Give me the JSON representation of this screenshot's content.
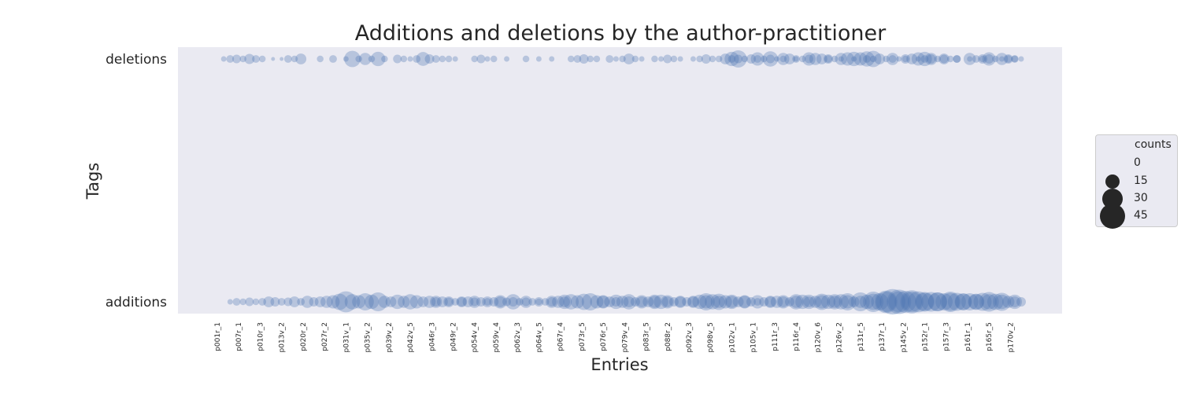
{
  "chart_data": {
    "type": "scatter",
    "title": "Additions and deletions by the author-practitioner",
    "xlabel": "Entries",
    "ylabel": "Tags",
    "y_categories": [
      "additions",
      "deletions"
    ],
    "x_tick_labels": [
      "p001r_1",
      "p007r_1",
      "p010r_3",
      "p013v_2",
      "p020r_2",
      "p027r_2",
      "p031v_1",
      "p035v_2",
      "p039v_2",
      "p042v_5",
      "p046r_3",
      "p049r_2",
      "p054v_4",
      "p059v_4",
      "p062v_3",
      "p064v_5",
      "p067r_4",
      "p073r_5",
      "p076r_5",
      "p079v_4",
      "p083r_5",
      "p088r_2",
      "p092v_3",
      "p098v_5",
      "p102v_1",
      "p105v_1",
      "p111r_3",
      "p116r_4",
      "p120v_6",
      "p126v_2",
      "p131r_5",
      "p137r_1",
      "p145v_2",
      "p152r_1",
      "p157r_3",
      "p161r_1",
      "p165r_5",
      "p170v_2"
    ],
    "x_tick_step": 10,
    "n_entries": 376,
    "size_legend": {
      "title": "counts",
      "levels": [
        0,
        15,
        30,
        45
      ],
      "labels": [
        "0",
        "15",
        "30",
        "45"
      ]
    },
    "grid": false,
    "legend_position": "right",
    "series": [
      {
        "tag": "deletions",
        "color": "#4c72b0",
        "points": [
          [
            3,
            2
          ],
          [
            6,
            4
          ],
          [
            9,
            5
          ],
          [
            12,
            3
          ],
          [
            15,
            7
          ],
          [
            18,
            4
          ],
          [
            21,
            3
          ],
          [
            26,
            1
          ],
          [
            30,
            1
          ],
          [
            33,
            4
          ],
          [
            36,
            3
          ],
          [
            39,
            8
          ],
          [
            48,
            3
          ],
          [
            54,
            4
          ],
          [
            60,
            2
          ],
          [
            63,
            18
          ],
          [
            66,
            3
          ],
          [
            69,
            10
          ],
          [
            72,
            3
          ],
          [
            75,
            14
          ],
          [
            78,
            3
          ],
          [
            84,
            5
          ],
          [
            87,
            3
          ],
          [
            90,
            2
          ],
          [
            93,
            4
          ],
          [
            96,
            13
          ],
          [
            99,
            6
          ],
          [
            102,
            4
          ],
          [
            105,
            3
          ],
          [
            108,
            3
          ],
          [
            111,
            2
          ],
          [
            120,
            3
          ],
          [
            123,
            5
          ],
          [
            126,
            2
          ],
          [
            129,
            3
          ],
          [
            135,
            2
          ],
          [
            144,
            3
          ],
          [
            150,
            2
          ],
          [
            156,
            2
          ],
          [
            165,
            3
          ],
          [
            168,
            4
          ],
          [
            171,
            6
          ],
          [
            174,
            3
          ],
          [
            177,
            3
          ],
          [
            183,
            4
          ],
          [
            186,
            2
          ],
          [
            189,
            3
          ],
          [
            192,
            8
          ],
          [
            195,
            3
          ],
          [
            198,
            2
          ],
          [
            204,
            3
          ],
          [
            207,
            2
          ],
          [
            210,
            5
          ],
          [
            213,
            3
          ],
          [
            216,
            2
          ],
          [
            222,
            2
          ],
          [
            225,
            3
          ],
          [
            228,
            6
          ],
          [
            231,
            3
          ],
          [
            234,
            3
          ],
          [
            237,
            8
          ],
          [
            240,
            4
          ],
          [
            243,
            5
          ],
          [
            246,
            3
          ],
          [
            249,
            6
          ],
          [
            252,
            4
          ],
          [
            255,
            3
          ],
          [
            258,
            5
          ],
          [
            261,
            2
          ],
          [
            264,
            3
          ],
          [
            270,
            2
          ],
          [
            273,
            3
          ],
          [
            276,
            5
          ],
          [
            279,
            10
          ],
          [
            285,
            4
          ],
          [
            288,
            3
          ],
          [
            291,
            2
          ],
          [
            297,
            2
          ],
          [
            303,
            4
          ],
          [
            306,
            3
          ],
          [
            312,
            3
          ],
          [
            315,
            4
          ],
          [
            318,
            2
          ],
          [
            321,
            3
          ],
          [
            327,
            2
          ],
          [
            330,
            4
          ],
          [
            333,
            6
          ],
          [
            336,
            3
          ],
          [
            339,
            5
          ],
          [
            342,
            3
          ],
          [
            345,
            4
          ],
          [
            351,
            2
          ],
          [
            354,
            4
          ],
          [
            357,
            3
          ],
          [
            360,
            6
          ],
          [
            363,
            3
          ],
          [
            366,
            2
          ],
          [
            369,
            4
          ],
          [
            372,
            3
          ],
          [
            375,
            2
          ],
          [
            243,
            20
          ],
          [
            240,
            14
          ],
          [
            252,
            12
          ],
          [
            258,
            16
          ],
          [
            264,
            10
          ],
          [
            267,
            8
          ],
          [
            270,
            4
          ],
          [
            276,
            12
          ],
          [
            282,
            8
          ],
          [
            285,
            6
          ],
          [
            291,
            10
          ],
          [
            294,
            12
          ],
          [
            297,
            14
          ],
          [
            300,
            12
          ],
          [
            303,
            16
          ],
          [
            306,
            18
          ],
          [
            309,
            8
          ],
          [
            315,
            10
          ],
          [
            321,
            6
          ],
          [
            324,
            8
          ],
          [
            327,
            12
          ],
          [
            330,
            14
          ],
          [
            333,
            10
          ],
          [
            339,
            8
          ],
          [
            345,
            4
          ],
          [
            351,
            10
          ],
          [
            357,
            6
          ],
          [
            360,
            12
          ],
          [
            366,
            10
          ],
          [
            369,
            6
          ],
          [
            372,
            4
          ]
        ]
      },
      {
        "tag": "additions",
        "color": "#4c72b0",
        "points": [
          [
            6,
            2
          ],
          [
            9,
            4
          ],
          [
            12,
            3
          ],
          [
            15,
            5
          ],
          [
            18,
            3
          ],
          [
            21,
            4
          ],
          [
            24,
            8
          ],
          [
            27,
            6
          ],
          [
            30,
            4
          ],
          [
            33,
            5
          ],
          [
            36,
            8
          ],
          [
            39,
            4
          ],
          [
            42,
            10
          ],
          [
            45,
            6
          ],
          [
            48,
            8
          ],
          [
            51,
            10
          ],
          [
            54,
            12
          ],
          [
            57,
            18
          ],
          [
            60,
            30
          ],
          [
            63,
            16
          ],
          [
            66,
            12
          ],
          [
            69,
            20
          ],
          [
            72,
            14
          ],
          [
            75,
            24
          ],
          [
            78,
            10
          ],
          [
            81,
            8
          ],
          [
            84,
            14
          ],
          [
            87,
            10
          ],
          [
            90,
            16
          ],
          [
            93,
            12
          ],
          [
            96,
            8
          ],
          [
            99,
            10
          ],
          [
            102,
            6
          ],
          [
            105,
            8
          ],
          [
            108,
            5
          ],
          [
            111,
            4
          ],
          [
            114,
            6
          ],
          [
            117,
            8
          ],
          [
            120,
            5
          ],
          [
            123,
            6
          ],
          [
            126,
            4
          ],
          [
            129,
            6
          ],
          [
            132,
            8
          ],
          [
            135,
            5
          ],
          [
            138,
            6
          ],
          [
            141,
            4
          ],
          [
            144,
            5
          ],
          [
            147,
            4
          ],
          [
            150,
            3
          ],
          [
            153,
            4
          ],
          [
            156,
            6
          ],
          [
            159,
            10
          ],
          [
            162,
            14
          ],
          [
            165,
            16
          ],
          [
            168,
            12
          ],
          [
            171,
            18
          ],
          [
            174,
            20
          ],
          [
            177,
            12
          ],
          [
            180,
            10
          ],
          [
            183,
            8
          ],
          [
            186,
            14
          ],
          [
            189,
            10
          ],
          [
            192,
            8
          ],
          [
            195,
            6
          ],
          [
            198,
            12
          ],
          [
            201,
            8
          ],
          [
            204,
            10
          ],
          [
            207,
            14
          ],
          [
            210,
            8
          ],
          [
            213,
            6
          ],
          [
            216,
            8
          ],
          [
            219,
            6
          ],
          [
            222,
            10
          ],
          [
            225,
            14
          ],
          [
            228,
            20
          ],
          [
            231,
            16
          ],
          [
            234,
            18
          ],
          [
            237,
            12
          ],
          [
            240,
            10
          ],
          [
            243,
            8
          ],
          [
            246,
            12
          ],
          [
            249,
            6
          ],
          [
            252,
            4
          ],
          [
            255,
            6
          ],
          [
            258,
            8
          ],
          [
            261,
            10
          ],
          [
            264,
            8
          ],
          [
            267,
            6
          ],
          [
            270,
            10
          ],
          [
            273,
            14
          ],
          [
            276,
            8
          ],
          [
            279,
            10
          ],
          [
            282,
            12
          ],
          [
            285,
            14
          ],
          [
            288,
            10
          ],
          [
            291,
            16
          ],
          [
            294,
            12
          ],
          [
            297,
            8
          ],
          [
            300,
            10
          ],
          [
            303,
            14
          ],
          [
            306,
            18
          ],
          [
            309,
            20
          ],
          [
            312,
            28
          ],
          [
            315,
            44
          ],
          [
            318,
            40
          ],
          [
            321,
            32
          ],
          [
            324,
            36
          ],
          [
            327,
            30
          ],
          [
            330,
            22
          ],
          [
            333,
            26
          ],
          [
            336,
            24
          ],
          [
            339,
            20
          ],
          [
            342,
            28
          ],
          [
            345,
            22
          ],
          [
            348,
            18
          ],
          [
            351,
            20
          ],
          [
            354,
            16
          ],
          [
            357,
            22
          ],
          [
            360,
            26
          ],
          [
            363,
            18
          ],
          [
            366,
            14
          ],
          [
            369,
            10
          ],
          [
            372,
            8
          ],
          [
            375,
            6
          ],
          [
            102,
            10
          ],
          [
            108,
            8
          ],
          [
            114,
            8
          ],
          [
            120,
            10
          ],
          [
            126,
            8
          ],
          [
            132,
            12
          ],
          [
            138,
            16
          ],
          [
            144,
            10
          ],
          [
            150,
            6
          ],
          [
            156,
            10
          ],
          [
            162,
            8
          ],
          [
            180,
            12
          ],
          [
            186,
            6
          ],
          [
            192,
            16
          ],
          [
            198,
            8
          ],
          [
            204,
            14
          ],
          [
            210,
            12
          ],
          [
            216,
            10
          ],
          [
            222,
            8
          ],
          [
            228,
            12
          ],
          [
            234,
            10
          ],
          [
            240,
            14
          ],
          [
            246,
            10
          ],
          [
            252,
            12
          ],
          [
            258,
            10
          ],
          [
            264,
            12
          ],
          [
            270,
            16
          ],
          [
            276,
            14
          ],
          [
            282,
            18
          ],
          [
            288,
            16
          ],
          [
            294,
            20
          ],
          [
            300,
            24
          ],
          [
            306,
            28
          ],
          [
            312,
            34
          ],
          [
            318,
            30
          ],
          [
            324,
            28
          ],
          [
            330,
            26
          ],
          [
            336,
            24
          ],
          [
            342,
            22
          ],
          [
            348,
            20
          ],
          [
            354,
            18
          ],
          [
            360,
            16
          ],
          [
            366,
            22
          ],
          [
            372,
            14
          ]
        ]
      }
    ]
  }
}
